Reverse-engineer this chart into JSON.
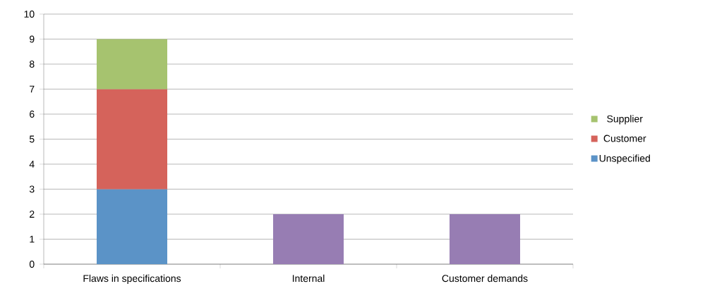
{
  "chart_data": {
    "type": "bar",
    "stacked": true,
    "categories": [
      "Flaws in specifications",
      "Internal",
      "Customer demands"
    ],
    "series": [
      {
        "name": "Unspecified",
        "color": "#5b93c7",
        "values": [
          3,
          null,
          null
        ]
      },
      {
        "name": "Customer",
        "color": "#d5635b",
        "values": [
          4,
          null,
          null
        ]
      },
      {
        "name": "Supplier",
        "color": "#a6c36f",
        "values": [
          2,
          null,
          null
        ]
      },
      {
        "color": "#977db3",
        "values": [
          null,
          2,
          2
        ]
      }
    ],
    "ylim": [
      0,
      10
    ],
    "yticks": [
      0,
      1,
      2,
      3,
      4,
      5,
      6,
      7,
      8,
      9,
      10
    ],
    "grid": "y",
    "legend": "right"
  }
}
